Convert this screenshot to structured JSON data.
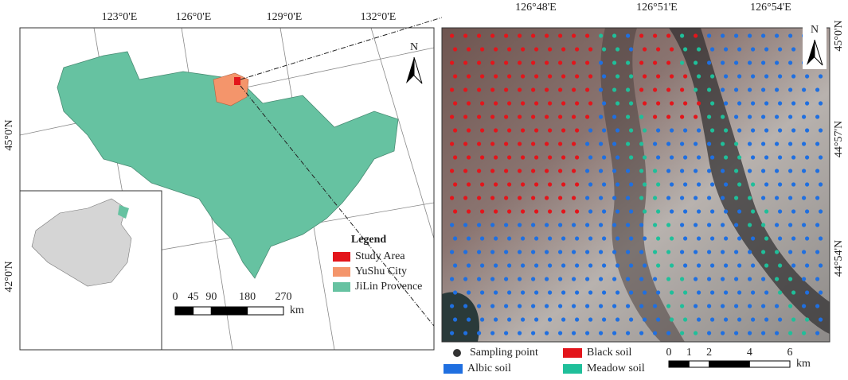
{
  "left_map": {
    "lon_labels": [
      "123°0'E",
      "126°0'E",
      "129°0'E",
      "132°0'E"
    ],
    "lat_labels": [
      "45°0'N",
      "42°0'N"
    ],
    "north": "N",
    "legend": {
      "title": "Legend",
      "items": [
        {
          "label": "Study Area",
          "color": "#e3151b"
        },
        {
          "label": "YuShu City",
          "color": "#f4956b"
        },
        {
          "label": "JiLin Provence",
          "color": "#66c2a1"
        }
      ]
    },
    "scale": {
      "ticks": [
        0,
        45,
        90,
        180,
        270
      ],
      "unit": "km"
    }
  },
  "right_map": {
    "lon_labels": [
      "126°48'E",
      "126°51'E",
      "126°54'E"
    ],
    "lat_labels": [
      "45°0'N",
      "44°57'N",
      "44°54'N"
    ],
    "north": "N"
  },
  "bottom_legend": {
    "items": [
      {
        "label": "Sampling point",
        "color": "#333333"
      },
      {
        "label": "Black soil",
        "color": "#e3151b"
      },
      {
        "label": "Albic soil",
        "color": "#1f6fe0"
      },
      {
        "label": "Meadow soil",
        "color": "#1fbf9a"
      }
    ],
    "scale": {
      "ticks": [
        0,
        1,
        2,
        4,
        6
      ],
      "unit": "km"
    }
  }
}
